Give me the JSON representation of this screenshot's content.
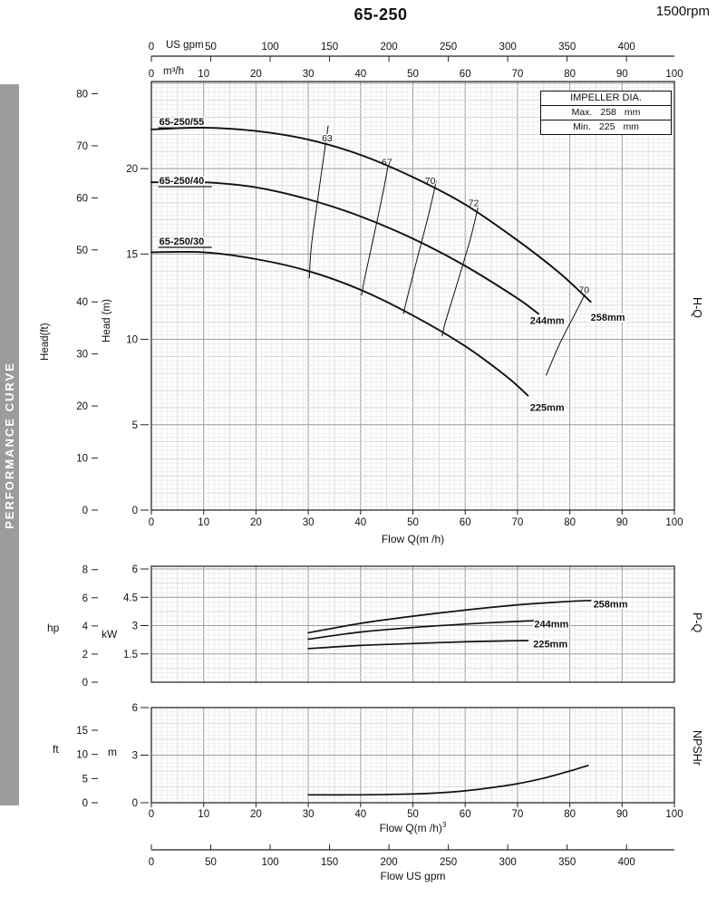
{
  "header": {
    "title": "65-250",
    "rpm": "1500rpm"
  },
  "banner": {
    "text": "PERFORMANCE CURVE"
  },
  "impeller_box": {
    "title": "IMPELLER DIA.",
    "max": {
      "label": "Max.",
      "value": "258",
      "unit": "mm"
    },
    "min": {
      "label": "Min.",
      "value": "225",
      "unit": "mm"
    }
  },
  "side_labels": {
    "hq": "H-Q",
    "pq": "P-Q",
    "npshr": "NPSHr"
  },
  "axis_units": {
    "us_gpm": "US gpm",
    "m3h": "m³/h",
    "head_ft": "Head(ft)",
    "head_m": "Head (m)",
    "hp": "hp",
    "kw": "kW",
    "ft": "ft",
    "m": "m",
    "flow_q_m3h_1": "Flow Q(m /h)",
    "flow_q_m3h_2": "Flow Q(m /h)",
    "flow_q_sup": "3",
    "flow_us_gpm": "Flow  US gpm"
  },
  "top_axis": {
    "us_gpm_ticks": [
      0,
      50,
      100,
      150,
      200,
      250,
      300,
      350,
      400
    ]
  },
  "bottom_axis": {
    "us_gpm_ticks": [
      0,
      50,
      100,
      150,
      200,
      250,
      300,
      350,
      400
    ]
  },
  "chart_data": [
    {
      "id": "hq",
      "type": "line",
      "name": "H-Q",
      "x_axis": {
        "unit": "m³/h",
        "min": 0,
        "max": 100,
        "ticks": [
          0,
          10,
          20,
          30,
          40,
          50,
          60,
          70,
          80,
          90,
          100
        ]
      },
      "y_axis_m": {
        "unit": "m",
        "min": 0,
        "max": 25,
        "ticks": [
          0,
          5,
          10,
          15,
          20
        ]
      },
      "y_axis_ft": {
        "unit": "ft",
        "ticks": [
          0,
          10,
          20,
          30,
          40,
          50,
          60,
          70,
          80
        ]
      },
      "series": [
        {
          "name": "65-250/55",
          "impeller": "258mm",
          "points": [
            [
              0,
              22.3
            ],
            [
              10,
              22.4
            ],
            [
              20,
              22.2
            ],
            [
              30,
              21.7
            ],
            [
              40,
              20.8
            ],
            [
              50,
              19.5
            ],
            [
              60,
              17.9
            ],
            [
              70,
              15.8
            ],
            [
              78,
              13.9
            ],
            [
              84,
              12.2
            ]
          ]
        },
        {
          "name": "65-250/40",
          "impeller": "244mm",
          "points": [
            [
              0,
              19.2
            ],
            [
              10,
              19.2
            ],
            [
              20,
              18.9
            ],
            [
              30,
              18.2
            ],
            [
              40,
              17.2
            ],
            [
              50,
              15.9
            ],
            [
              60,
              14.3
            ],
            [
              70,
              12.4
            ],
            [
              74,
              11.5
            ]
          ]
        },
        {
          "name": "65-250/30",
          "impeller": "225mm",
          "points": [
            [
              0,
              15.1
            ],
            [
              10,
              15.1
            ],
            [
              20,
              14.7
            ],
            [
              30,
              14.0
            ],
            [
              40,
              12.9
            ],
            [
              50,
              11.4
            ],
            [
              60,
              9.6
            ],
            [
              68,
              7.8
            ],
            [
              72,
              6.7
            ]
          ]
        }
      ],
      "efficiency_lines": [
        {
          "label": "63",
          "label_at": [
            32.6,
            21.6
          ],
          "points": [
            [
              33.8,
              22.5
            ],
            [
              33.0,
              20.8
            ],
            [
              31.8,
              18.2
            ],
            [
              30.6,
              15.5
            ],
            [
              30.2,
              13.6
            ]
          ]
        },
        {
          "label": "67",
          "label_at": [
            44.0,
            20.2
          ],
          "points": [
            [
              45.5,
              20.6
            ],
            [
              44.3,
              18.6
            ],
            [
              42.5,
              16.0
            ],
            [
              40.8,
              13.6
            ],
            [
              40.2,
              12.6
            ]
          ]
        },
        {
          "label": "70",
          "label_at": [
            52.3,
            19.1
          ],
          "points": [
            [
              54.5,
              19.3
            ],
            [
              53.0,
              17.3
            ],
            [
              50.8,
              14.7
            ],
            [
              48.8,
              12.3
            ],
            [
              48.2,
              11.5
            ]
          ]
        },
        {
          "label": "72",
          "label_at": [
            60.6,
            17.8
          ],
          "points": [
            [
              62.5,
              17.8
            ],
            [
              61.0,
              15.9
            ],
            [
              58.5,
              13.3
            ],
            [
              56.2,
              11.0
            ],
            [
              55.6,
              10.2
            ]
          ]
        },
        {
          "label": "70",
          "label_at": [
            81.7,
            12.7
          ],
          "points": [
            [
              83.5,
              13.0
            ],
            [
              81.0,
              11.5
            ],
            [
              78.0,
              9.7
            ],
            [
              75.5,
              7.9
            ]
          ]
        }
      ],
      "curve_labels": [
        {
          "text": "65-250/55",
          "x": 1.5,
          "y": 22.55,
          "bold": true,
          "underline": true
        },
        {
          "text": "65-250/40",
          "x": 1.5,
          "y": 19.1,
          "bold": true,
          "underline": true
        },
        {
          "text": "65-250/30",
          "x": 1.5,
          "y": 15.55,
          "bold": true,
          "underline": true
        },
        {
          "text": "258mm",
          "x": 84.0,
          "y": 11.1,
          "bold": true
        },
        {
          "text": "244mm",
          "x": 72.4,
          "y": 10.9,
          "bold": true
        },
        {
          "text": "225mm",
          "x": 72.4,
          "y": 5.8,
          "bold": true
        }
      ]
    },
    {
      "id": "pq",
      "type": "line",
      "name": "P-Q",
      "x_axis": {
        "unit": "m³/h",
        "min": 0,
        "max": 100
      },
      "y_axis_kw": {
        "unit": "kW",
        "min": 0,
        "max": 6,
        "ticks": [
          1.5,
          3,
          4.5,
          6
        ]
      },
      "y_axis_hp": {
        "unit": "hp",
        "ticks": [
          0,
          2,
          4,
          6,
          8
        ]
      },
      "series": [
        {
          "name": "258mm",
          "points": [
            [
              30,
              2.62
            ],
            [
              40,
              3.12
            ],
            [
              50,
              3.5
            ],
            [
              60,
              3.82
            ],
            [
              70,
              4.1
            ],
            [
              80,
              4.28
            ],
            [
              84,
              4.33
            ]
          ]
        },
        {
          "name": "244mm",
          "points": [
            [
              30,
              2.28
            ],
            [
              40,
              2.66
            ],
            [
              50,
              2.9
            ],
            [
              60,
              3.08
            ],
            [
              70,
              3.22
            ],
            [
              74,
              3.26
            ]
          ]
        },
        {
          "name": "225mm",
          "points": [
            [
              30,
              1.78
            ],
            [
              40,
              1.95
            ],
            [
              50,
              2.05
            ],
            [
              60,
              2.14
            ],
            [
              70,
              2.2
            ],
            [
              72,
              2.2
            ]
          ]
        }
      ],
      "curve_labels": [
        {
          "text": "258mm",
          "x": 84.5,
          "y": 3.95,
          "bold": true
        },
        {
          "text": "244mm",
          "x": 73.2,
          "y": 2.9,
          "bold": true
        },
        {
          "text": "225mm",
          "x": 73.0,
          "y": 1.85,
          "bold": true
        }
      ]
    },
    {
      "id": "npsh",
      "type": "line",
      "name": "NPSHr",
      "x_axis": {
        "unit": "m³/h",
        "min": 0,
        "max": 100,
        "ticks": [
          0,
          10,
          20,
          30,
          40,
          50,
          60,
          70,
          80,
          90,
          100
        ]
      },
      "y_axis_m": {
        "unit": "m",
        "min": 0,
        "max": 6,
        "ticks": [
          0,
          3,
          6
        ]
      },
      "y_axis_ft": {
        "unit": "ft",
        "ticks": [
          0,
          5,
          10,
          15
        ]
      },
      "series": [
        {
          "name": "NPSHr",
          "points": [
            [
              30,
              0.5
            ],
            [
              40,
              0.5
            ],
            [
              50,
              0.55
            ],
            [
              55,
              0.62
            ],
            [
              60,
              0.75
            ],
            [
              65,
              0.95
            ],
            [
              70,
              1.2
            ],
            [
              75,
              1.55
            ],
            [
              80,
              2.0
            ],
            [
              83.5,
              2.35
            ]
          ]
        }
      ]
    }
  ]
}
